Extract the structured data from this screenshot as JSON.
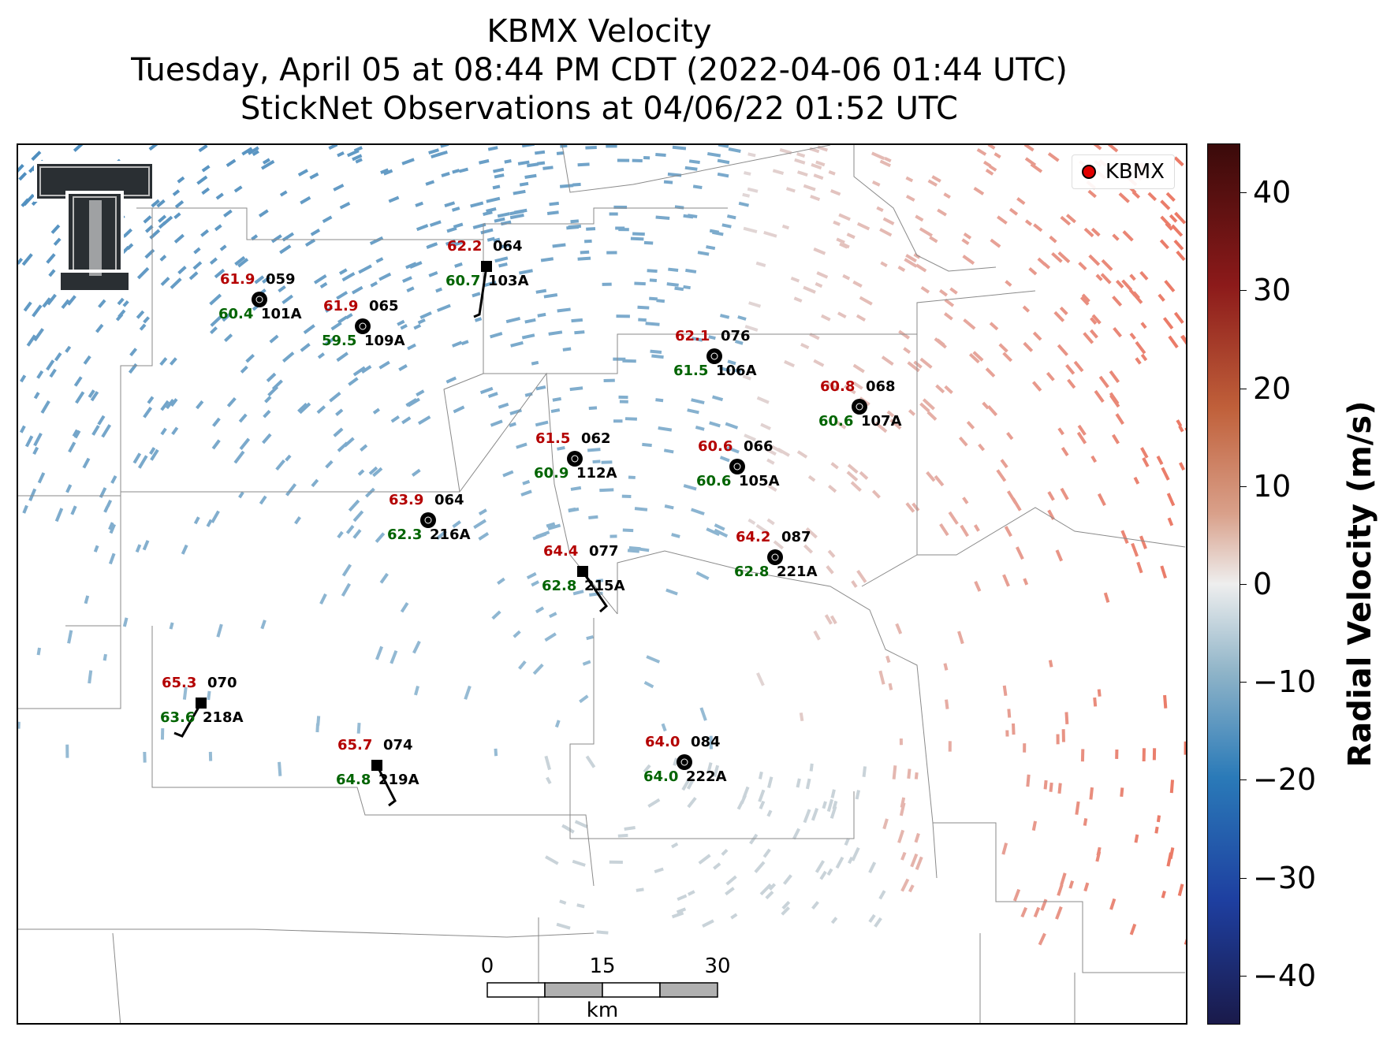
{
  "title": {
    "line1": "KBMX Velocity",
    "line2": "Tuesday, April 05 at 08:44 PM CDT (2022-04-06 01:44 UTC)",
    "line3": "StickNet Observations at 04/06/22 01:52 UTC"
  },
  "legend": {
    "label": "KBMX",
    "marker_color": "#e00000"
  },
  "colorbar": {
    "label": "Radial Velocity (m/s)",
    "min": -45,
    "max": 45,
    "ticks": [
      "40",
      "30",
      "20",
      "10",
      "0",
      "−10",
      "−20",
      "−30",
      "−40"
    ],
    "tick_values": [
      40,
      30,
      20,
      10,
      0,
      -10,
      -20,
      -30,
      -40
    ],
    "colors": [
      "#1a1a4a",
      "#1e3fa0",
      "#2a7ab8",
      "#8fb4c8",
      "#eeeeee",
      "#d9a08a",
      "#c0603a",
      "#8c1a1a",
      "#3a0a0a"
    ]
  },
  "scalebar": {
    "labels": [
      "0",
      "15",
      "30"
    ],
    "unit": "km"
  },
  "stations": [
    {
      "id": "101A",
      "temp": "61.9",
      "dew": "60.4",
      "dir": "059",
      "marker": "circle"
    },
    {
      "id": "109A",
      "temp": "61.9",
      "dew": "59.5",
      "dir": "065",
      "marker": "circle"
    },
    {
      "id": "103A",
      "temp": "62.2",
      "dew": "60.7",
      "dir": "064",
      "marker": "square"
    },
    {
      "id": "106A",
      "temp": "62.1",
      "dew": "61.5",
      "dir": "076",
      "marker": "circle"
    },
    {
      "id": "107A",
      "temp": "60.8",
      "dew": "60.6",
      "dir": "068",
      "marker": "circle"
    },
    {
      "id": "112A",
      "temp": "61.5",
      "dew": "60.9",
      "dir": "062",
      "marker": "circle"
    },
    {
      "id": "105A",
      "temp": "60.6",
      "dew": "60.6",
      "dir": "066",
      "marker": "circle"
    },
    {
      "id": "216A",
      "temp": "63.9",
      "dew": "62.3",
      "dir": "064",
      "marker": "circle"
    },
    {
      "id": "215A",
      "temp": "64.4",
      "dew": "62.8",
      "dir": "077",
      "marker": "square"
    },
    {
      "id": "221A",
      "temp": "64.2",
      "dew": "62.8",
      "dir": "087",
      "marker": "circle"
    },
    {
      "id": "218A",
      "temp": "65.3",
      "dew": "63.6",
      "dir": "070",
      "marker": "square"
    },
    {
      "id": "219A",
      "temp": "65.7",
      "dew": "64.8",
      "dir": "074",
      "marker": "square"
    },
    {
      "id": "222A",
      "temp": "64.0",
      "dew": "64.0",
      "dir": "084",
      "marker": "circle"
    }
  ]
}
